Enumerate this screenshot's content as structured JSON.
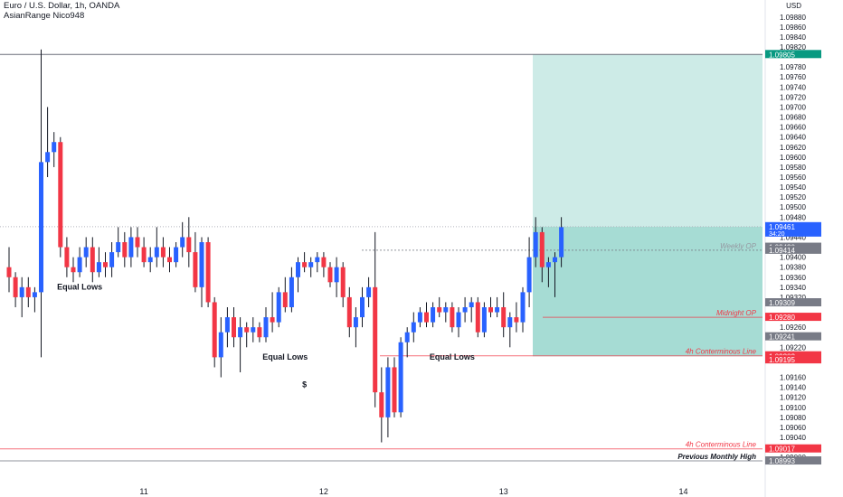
{
  "header": {
    "symbol_line": "Euro / U.S. Dollar, 1h, OANDA",
    "indicator_line": "AsianRange Nico948"
  },
  "axis": {
    "currency": "USD"
  },
  "chart_data": {
    "type": "candlestick",
    "symbol": "EURUSD",
    "timeframe": "1h",
    "ylim": [
      1.08975,
      1.09885
    ],
    "y_ticks": [
      1.09,
      1.0902,
      1.0904,
      1.0906,
      1.0908,
      1.091,
      1.0912,
      1.0914,
      1.0916,
      1.0922,
      1.0926,
      1.0932,
      1.0934,
      1.0936,
      1.0938,
      1.094,
      1.0944,
      1.0948,
      1.095,
      1.0952,
      1.0954,
      1.0956,
      1.0958,
      1.096,
      1.0962,
      1.0964,
      1.0966,
      1.0968,
      1.097,
      1.0972,
      1.0974,
      1.0976,
      1.0978,
      1.0982,
      1.0984,
      1.0986,
      1.0988
    ],
    "x_ticks": [
      {
        "label": "11",
        "bar": 21
      },
      {
        "label": "12",
        "bar": 49
      },
      {
        "label": "13",
        "bar": 77
      },
      {
        "label": "14",
        "bar": 105
      }
    ],
    "colors": {
      "bull": "#2962ff",
      "bear": "#f23645",
      "target_zone": "#cdebe7",
      "entry_zone": "#a6dcd4",
      "line_red": "#f23645"
    },
    "candles": [
      [
        1.0938,
        1.0942,
        1.0933,
        1.0936
      ],
      [
        1.0936,
        1.0937,
        1.093,
        1.0932
      ],
      [
        1.0932,
        1.0936,
        1.0928,
        1.0934
      ],
      [
        1.0934,
        1.0936,
        1.093,
        1.0932
      ],
      [
        1.0932,
        1.0934,
        1.0929,
        1.0933
      ],
      [
        1.0933,
        1.09815,
        1.092,
        1.0959
      ],
      [
        1.0959,
        1.097,
        1.0956,
        1.0961
      ],
      [
        1.0961,
        1.0965,
        1.0958,
        1.0963
      ],
      [
        1.0963,
        1.0964,
        1.094,
        1.0942
      ],
      [
        1.0942,
        1.0944,
        1.0936,
        1.0938
      ],
      [
        1.0938,
        1.094,
        1.0935,
        1.0937
      ],
      [
        1.0937,
        1.0942,
        1.0936,
        1.094
      ],
      [
        1.094,
        1.0944,
        1.0938,
        1.0942
      ],
      [
        1.0942,
        1.0944,
        1.0935,
        1.0937
      ],
      [
        1.0937,
        1.0942,
        1.0936,
        1.0939
      ],
      [
        1.0939,
        1.0941,
        1.0936,
        1.0938
      ],
      [
        1.0938,
        1.0943,
        1.0936,
        1.0941
      ],
      [
        1.0941,
        1.0946,
        1.094,
        1.0943
      ],
      [
        1.0943,
        1.0945,
        1.0938,
        1.094
      ],
      [
        1.094,
        1.0946,
        1.0938,
        1.0944
      ],
      [
        1.0944,
        1.0946,
        1.094,
        1.0942
      ],
      [
        1.0942,
        1.0944,
        1.0938,
        1.0939
      ],
      [
        1.0939,
        1.0942,
        1.0937,
        1.094
      ],
      [
        1.094,
        1.0946,
        1.0938,
        1.0942
      ],
      [
        1.0942,
        1.0944,
        1.0938,
        1.094
      ],
      [
        1.094,
        1.0942,
        1.0937,
        1.0939
      ],
      [
        1.0939,
        1.0943,
        1.0938,
        1.0942
      ],
      [
        1.0942,
        1.0947,
        1.094,
        1.0944
      ],
      [
        1.0944,
        1.0948,
        1.0938,
        1.0941
      ],
      [
        1.0941,
        1.0945,
        1.0933,
        1.0934
      ],
      [
        1.0934,
        1.0944,
        1.093,
        1.0943
      ],
      [
        1.0943,
        1.0944,
        1.093,
        1.0931
      ],
      [
        1.0931,
        1.0932,
        1.0918,
        1.092
      ],
      [
        1.092,
        1.0928,
        1.0916,
        1.0925
      ],
      [
        1.0925,
        1.093,
        1.0922,
        1.0928
      ],
      [
        1.0928,
        1.093,
        1.0922,
        1.0924
      ],
      [
        1.0924,
        1.0928,
        1.0917,
        1.0926
      ],
      [
        1.0926,
        1.0927,
        1.0922,
        1.0925
      ],
      [
        1.0925,
        1.0928,
        1.0923,
        1.0926
      ],
      [
        1.0926,
        1.0927,
        1.0923,
        1.0924
      ],
      [
        1.0924,
        1.093,
        1.0923,
        1.0928
      ],
      [
        1.0928,
        1.0933,
        1.0925,
        1.0927
      ],
      [
        1.0927,
        1.0934,
        1.0926,
        1.0933
      ],
      [
        1.0933,
        1.0936,
        1.0929,
        1.093
      ],
      [
        1.093,
        1.0938,
        1.0929,
        1.0936
      ],
      [
        1.0936,
        1.094,
        1.0933,
        1.0939
      ],
      [
        1.0939,
        1.0941,
        1.0937,
        1.0938
      ],
      [
        1.0938,
        1.094,
        1.0936,
        1.0939
      ],
      [
        1.0939,
        1.0941,
        1.0937,
        1.094
      ],
      [
        1.094,
        1.0941,
        1.0936,
        1.0938
      ],
      [
        1.0938,
        1.0939,
        1.0934,
        1.0935
      ],
      [
        1.0935,
        1.094,
        1.0932,
        1.0938
      ],
      [
        1.0938,
        1.0939,
        1.093,
        1.0932
      ],
      [
        1.0932,
        1.0934,
        1.0924,
        1.0926
      ],
      [
        1.0926,
        1.093,
        1.0922,
        1.0928
      ],
      [
        1.0928,
        1.0934,
        1.0926,
        1.0932
      ],
      [
        1.0932,
        1.0936,
        1.093,
        1.0934
      ],
      [
        1.0934,
        1.0945,
        1.091,
        1.0913
      ],
      [
        1.0913,
        1.0918,
        1.0903,
        1.0908
      ],
      [
        1.0908,
        1.092,
        1.0904,
        1.0918
      ],
      [
        1.0918,
        1.092,
        1.0908,
        1.0909
      ],
      [
        1.0909,
        1.0924,
        1.0908,
        1.0923
      ],
      [
        1.0923,
        1.0926,
        1.092,
        1.0925
      ],
      [
        1.0925,
        1.0929,
        1.0923,
        1.0927
      ],
      [
        1.0927,
        1.093,
        1.0926,
        1.0929
      ],
      [
        1.0929,
        1.0931,
        1.0926,
        1.0927
      ],
      [
        1.0927,
        1.0931,
        1.0926,
        1.093
      ],
      [
        1.093,
        1.0932,
        1.0928,
        1.0929
      ],
      [
        1.0929,
        1.0931,
        1.0927,
        1.093
      ],
      [
        1.093,
        1.0931,
        1.0925,
        1.0926
      ],
      [
        1.0926,
        1.093,
        1.0924,
        1.0929
      ],
      [
        1.0929,
        1.0932,
        1.0927,
        1.093
      ],
      [
        1.093,
        1.0932,
        1.0927,
        1.0931
      ],
      [
        1.0931,
        1.0932,
        1.0924,
        1.0925
      ],
      [
        1.0925,
        1.0931,
        1.0924,
        1.093
      ],
      [
        1.093,
        1.0932,
        1.0928,
        1.0929
      ],
      [
        1.0929,
        1.0932,
        1.0928,
        1.093
      ],
      [
        1.093,
        1.0933,
        1.0924,
        1.0926
      ],
      [
        1.0926,
        1.0929,
        1.0922,
        1.0928
      ],
      [
        1.0928,
        1.0931,
        1.0925,
        1.0927
      ],
      [
        1.0927,
        1.0934,
        1.0925,
        1.0933
      ],
      [
        1.0933,
        1.0944,
        1.093,
        1.094
      ],
      [
        1.094,
        1.0948,
        1.0938,
        1.0945
      ],
      [
        1.0945,
        1.0946,
        1.0935,
        1.0938
      ],
      [
        1.0938,
        1.094,
        1.0934,
        1.0939
      ],
      [
        1.0939,
        1.0941,
        1.0932,
        1.094
      ],
      [
        1.094,
        1.0948,
        1.0938,
        1.0946
      ]
    ],
    "price_lines": [
      {
        "label": "Weekly OP",
        "price": 1.09414,
        "style": "gray-dotted"
      },
      {
        "label": "Midnight OP",
        "price": 1.0928,
        "style": "red-solid"
      },
      {
        "label": "4h Conterminous Line",
        "price": 1.09203,
        "style": "red-solid"
      },
      {
        "label": "4h Conterminous Line",
        "price": 1.09017,
        "style": "red-solid"
      },
      {
        "label": "Previous Monthly High",
        "price": 1.08993,
        "style": "gray-solid"
      }
    ],
    "position_tool": {
      "target": 1.09805,
      "entry": 1.09461,
      "stop": 1.09202
    },
    "annotations": [
      {
        "text": "Equal Lows",
        "bar": 11,
        "price": 1.09335
      },
      {
        "text": "Equal Lows",
        "bar": 43,
        "price": 1.09195
      },
      {
        "text": "Equal Lows",
        "bar": 69,
        "price": 1.09195
      },
      {
        "text": "$",
        "bar": 46,
        "price": 1.0914
      }
    ],
    "price_badges": [
      {
        "value": "1.09805",
        "color": "#089981"
      },
      {
        "value": "1.09461",
        "sub": "34:20",
        "color": "#2962ff"
      },
      {
        "value": "1.09420",
        "color": "#787b86"
      },
      {
        "value": "1.09414",
        "color": "#787b86"
      },
      {
        "value": "1.09309",
        "color": "#787b86"
      },
      {
        "value": "1.09280",
        "color": "#f23645"
      },
      {
        "value": "1.09241",
        "color": "#787b86"
      },
      {
        "value": "1.09203",
        "color": "#f23645"
      },
      {
        "value": "1.09202",
        "color": "#f23645"
      },
      {
        "value": "1.09195",
        "color": "#f23645"
      },
      {
        "value": "1.09017",
        "color": "#f23645"
      },
      {
        "value": "1.08993",
        "color": "#787b86"
      }
    ]
  }
}
